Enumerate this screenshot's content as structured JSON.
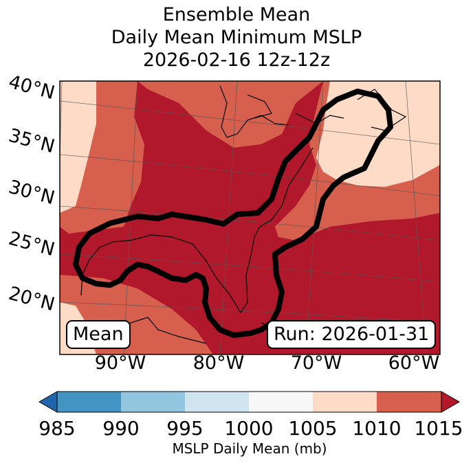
{
  "title": {
    "line1": "Ensemble Mean",
    "line2": "Daily Mean Minimum MSLP",
    "line3": "2026-02-16 12z-12z"
  },
  "map": {
    "lat_labels": [
      "40°N",
      "35°N",
      "30°N",
      "25°N",
      "20°N"
    ],
    "lon_labels": [
      "90°W",
      "80°W",
      "70°W",
      "60°W"
    ],
    "left_box": "Mean",
    "right_box": "Run: 2026-01-31",
    "colors": {
      "band_1005_1010": "#fddbc7",
      "band_1010_1015": "#d6604d",
      "band_ge_1015": "#b2182b",
      "outline": "#000000"
    }
  },
  "colorbar": {
    "title": "MSLP Daily Mean (mb)",
    "ticks": [
      "985",
      "990",
      "995",
      "1000",
      "1005",
      "1010",
      "1015"
    ],
    "segments": [
      "#4393c3",
      "#92c5de",
      "#d1e5f0",
      "#f7f7f7",
      "#fddbc7",
      "#d6604d"
    ],
    "under_color": "#2166ac",
    "over_color": "#b2182b"
  }
}
